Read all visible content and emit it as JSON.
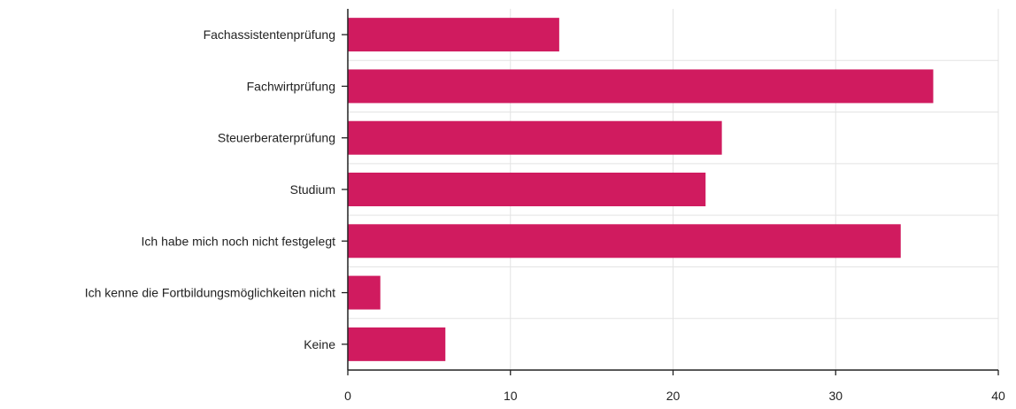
{
  "chart_data": {
    "type": "bar",
    "orientation": "horizontal",
    "categories": [
      "Fachassistentenprüfung",
      "Fachwirtprüfung",
      "Steuerberaterprüfung",
      "Studium",
      "Ich habe mich noch nicht festgelegt",
      "Ich kenne die Fortbildungsmöglichkeiten nicht",
      "Keine"
    ],
    "values": [
      13,
      36,
      23,
      22,
      34,
      2,
      6
    ],
    "xlim": [
      0,
      40
    ],
    "xticks": [
      "0",
      "10",
      "20",
      "30",
      "40"
    ],
    "title": "",
    "xlabel": "",
    "ylabel": "",
    "grid": true,
    "bar_color": "#d01b5f",
    "grid_color": "#e3e3e3",
    "axis_color": "#222222"
  }
}
